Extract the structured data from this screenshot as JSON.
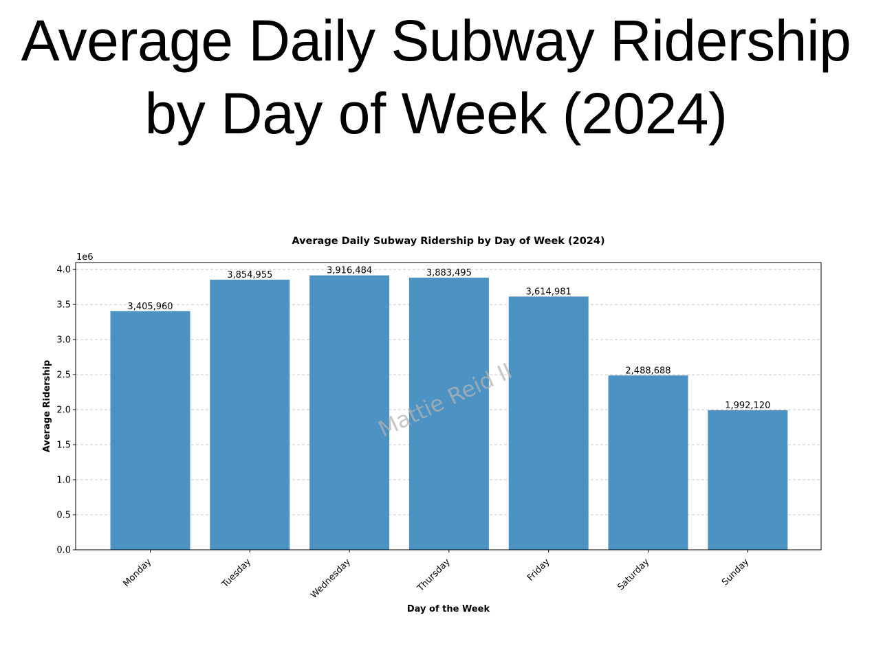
{
  "slide": {
    "title": "Average Daily Subway Ridership by Day of Week (2024)"
  },
  "watermark": "Mattie Reid II",
  "colors": {
    "bar": "#4c92c3",
    "grid": "#c8c8c8",
    "axis": "#000000",
    "watermark": "#b3b3b3"
  },
  "chart_data": {
    "type": "bar",
    "title": "Average Daily Subway Ridership by Day of Week (2024)",
    "xlabel": "Day of the Week",
    "ylabel": "Average Ridership",
    "y_multiplier_label": "1e6",
    "y_scale": 1000000,
    "ylim": [
      0,
      4.1
    ],
    "yticks": [
      0.0,
      0.5,
      1.0,
      1.5,
      2.0,
      2.5,
      3.0,
      3.5,
      4.0
    ],
    "ytick_labels": [
      "0.0",
      "0.5",
      "1.0",
      "1.5",
      "2.0",
      "2.5",
      "3.0",
      "3.5",
      "4.0"
    ],
    "grid": "y-dashed",
    "categories": [
      "Monday",
      "Tuesday",
      "Wednesday",
      "Thursday",
      "Friday",
      "Saturday",
      "Sunday"
    ],
    "values": [
      3405960,
      3854955,
      3916484,
      3883495,
      3614981,
      2488688,
      1992120
    ],
    "value_labels": [
      "3,405,960",
      "3,854,955",
      "3,916,484",
      "3,883,495",
      "3,614,981",
      "2,488,688",
      "1,992,120"
    ]
  }
}
